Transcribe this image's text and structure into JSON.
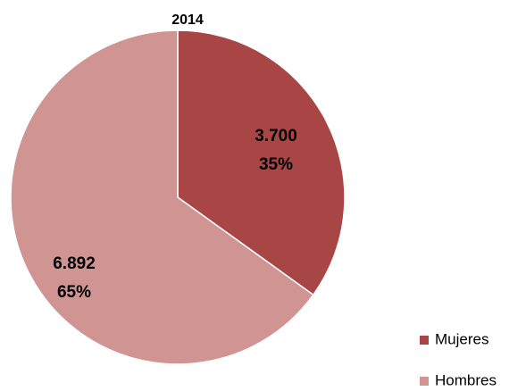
{
  "chart_data": {
    "type": "pie",
    "title": "2014",
    "categories": [
      "Mujeres",
      "Hombres"
    ],
    "values": [
      3700,
      6892
    ],
    "value_labels": [
      "3.700",
      "6.892"
    ],
    "percentages": [
      35,
      65
    ],
    "percentage_labels": [
      "35%",
      "65%"
    ],
    "colors": [
      "#a84545",
      "#d09492"
    ],
    "legend": "bottom-right"
  }
}
